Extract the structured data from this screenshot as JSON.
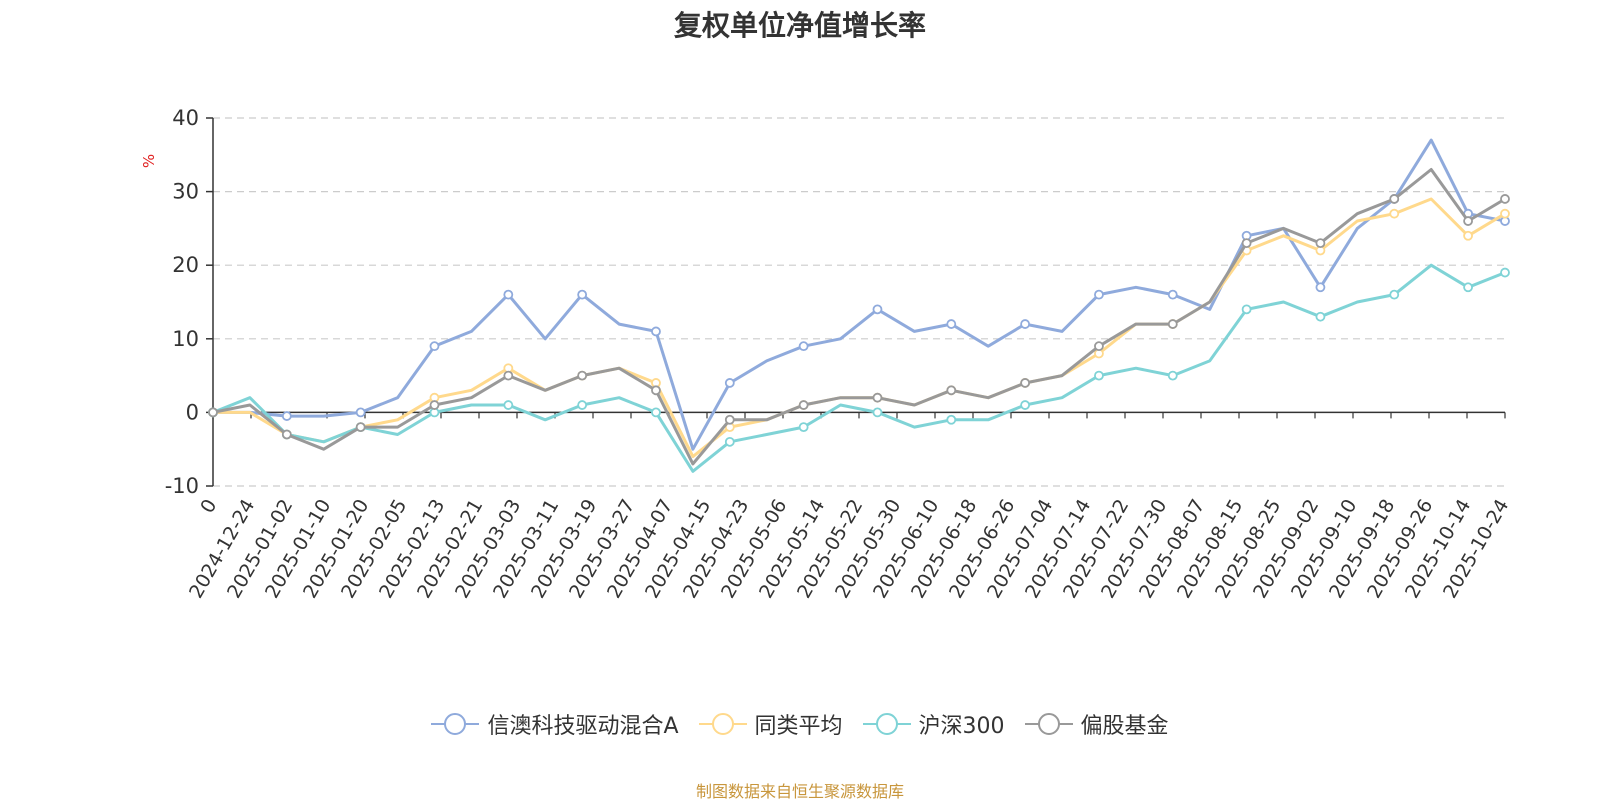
{
  "chart_data": {
    "type": "line",
    "title": "复权单位净值增长率",
    "ylabel": "%",
    "xlabel": "",
    "ylim": [
      -10,
      40
    ],
    "yticks": [
      -10,
      0,
      10,
      20,
      30,
      40
    ],
    "grid": true,
    "legend_position": "bottom",
    "x_ticks": [
      "0",
      "2024-12-24",
      "2025-01-02",
      "2025-01-10",
      "2025-01-20",
      "2025-02-05",
      "2025-02-13",
      "2025-02-21",
      "2025-03-03",
      "2025-03-11",
      "2025-03-19",
      "2025-03-27",
      "2025-04-07",
      "2025-04-15",
      "2025-04-23",
      "2025-05-06",
      "2025-05-14",
      "2025-05-22",
      "2025-05-30",
      "2025-06-10",
      "2025-06-18",
      "2025-06-26",
      "2025-07-04",
      "2025-07-14",
      "2025-07-22",
      "2025-07-30",
      "2025-08-07",
      "2025-08-15",
      "2025-08-25",
      "2025-09-02",
      "2025-09-10",
      "2025-09-18",
      "2025-09-26",
      "2025-10-14",
      "2025-10-24"
    ],
    "series": [
      {
        "name": "信澳科技驱动混合A",
        "color": "#8faadc",
        "values": [
          0,
          0,
          -0.5,
          -0.5,
          0,
          2,
          9,
          11,
          16,
          10,
          16,
          12,
          11,
          -5,
          4,
          7,
          9,
          10,
          14,
          11,
          12,
          9,
          12,
          11,
          16,
          17,
          16,
          14,
          24,
          25,
          17,
          25,
          29,
          37,
          27,
          26
        ]
      },
      {
        "name": "同类平均",
        "color": "#ffd98c",
        "values": [
          0,
          0,
          -3,
          -4,
          -2,
          -1,
          2,
          3,
          6,
          3,
          5,
          6,
          4,
          -6,
          -2,
          -1,
          1,
          2,
          2,
          1,
          3,
          2,
          4,
          5,
          8,
          12,
          12,
          15,
          22,
          24,
          22,
          26,
          27,
          29,
          24,
          27
        ]
      },
      {
        "name": "沪深300",
        "color": "#7fd3d6",
        "values": [
          0,
          2,
          -3,
          -4,
          -2,
          -3,
          0,
          1,
          1,
          -1,
          1,
          2,
          0,
          -8,
          -4,
          -3,
          -2,
          1,
          0,
          -2,
          -1,
          -1,
          1,
          2,
          5,
          6,
          5,
          7,
          14,
          15,
          13,
          15,
          16,
          20,
          17,
          19
        ]
      },
      {
        "name": "偏股基金",
        "color": "#999999",
        "values": [
          0,
          1,
          -3,
          -5,
          -2,
          -2,
          1,
          2,
          5,
          3,
          5,
          6,
          3,
          -7,
          -1,
          -1,
          1,
          2,
          2,
          1,
          3,
          2,
          4,
          5,
          9,
          12,
          12,
          15,
          23,
          25,
          23,
          27,
          29,
          33,
          26,
          29
        ]
      }
    ]
  },
  "source_note": "制图数据来自恒生聚源数据库"
}
